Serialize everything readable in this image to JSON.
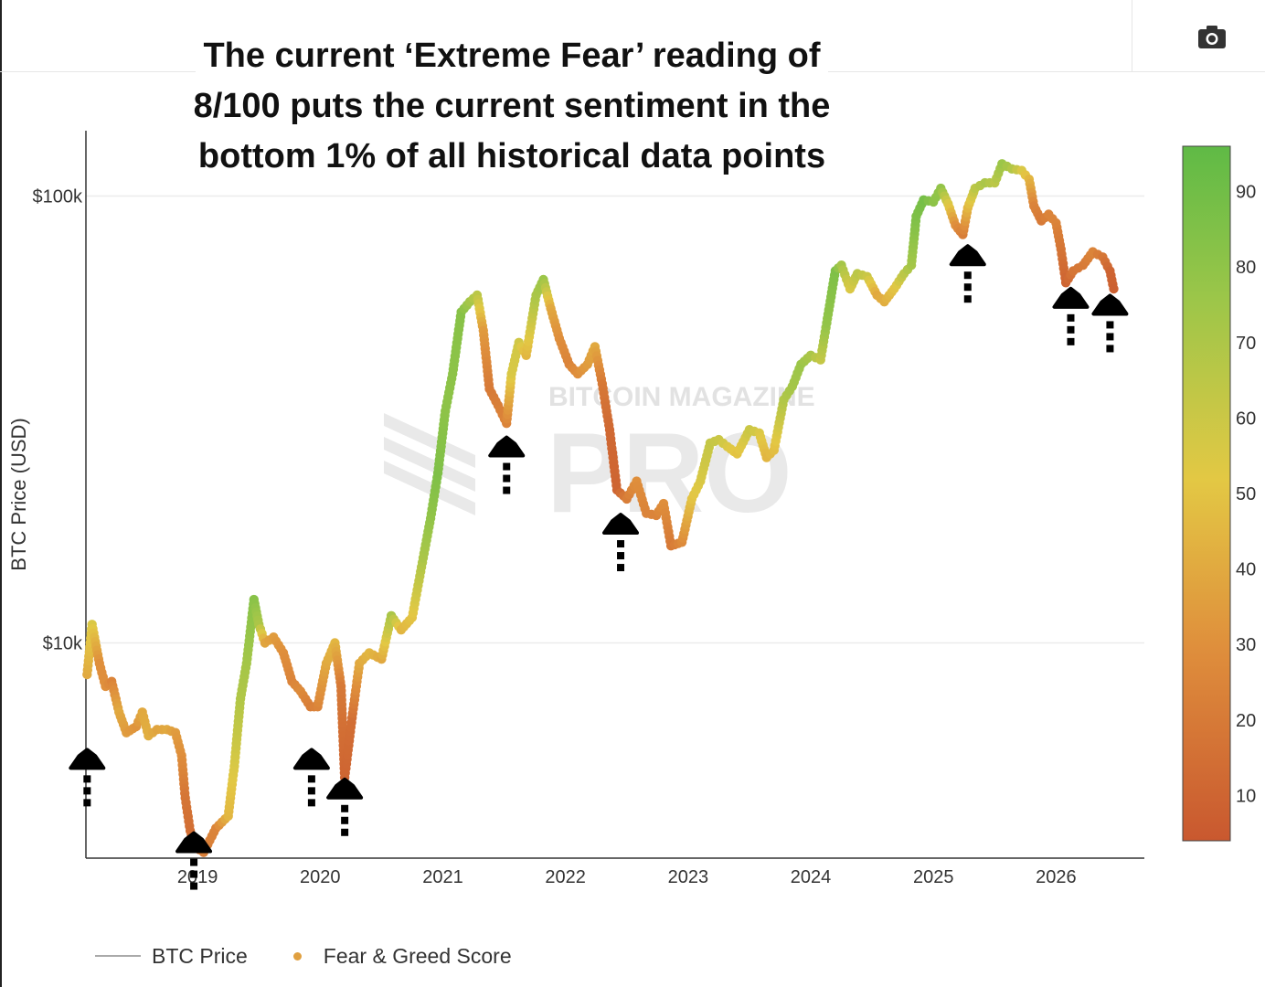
{
  "headline": {
    "line1": "The current ‘Extreme Fear’ reading of",
    "line2": "8/100 puts the current sentiment in the",
    "line3": "bottom 1% of all historical data points"
  },
  "toolbar": {
    "camera_icon": "camera-icon"
  },
  "watermark": {
    "small": "BITCOIN MAGAZINE",
    "big": "PRO"
  },
  "legend": {
    "price_label": "BTC Price",
    "score_label": "Fear & Greed Score"
  },
  "colors": {
    "greed": "#5fba46",
    "mid": "#e3c844",
    "fear": "#c9582f",
    "price_line": "#aaaaaa"
  },
  "chart_data": {
    "type": "scatter",
    "title": "",
    "xlabel": "",
    "ylabel": "BTC Price (USD)",
    "yscale": "log",
    "x_ticks": [
      "2019",
      "2020",
      "2021",
      "2022",
      "2023",
      "2024",
      "2025",
      "2026"
    ],
    "y_ticks": [
      {
        "value": 10000,
        "label": "$10k"
      },
      {
        "value": 100000,
        "label": "$100k"
      }
    ],
    "xlim": [
      2018.09,
      2026.72
    ],
    "ylim": [
      3300,
      140000
    ],
    "colorbar": {
      "range": [
        4,
        96
      ],
      "ticks": [
        10,
        20,
        30,
        40,
        50,
        60,
        70,
        80,
        90
      ]
    },
    "series": [
      {
        "name": "BTC Price",
        "points": [
          [
            2018.1,
            8500,
            40
          ],
          [
            2018.14,
            11000,
            55
          ],
          [
            2018.2,
            9000,
            30
          ],
          [
            2018.25,
            8000,
            30
          ],
          [
            2018.3,
            8200,
            25
          ],
          [
            2018.36,
            7000,
            40
          ],
          [
            2018.42,
            6300,
            35
          ],
          [
            2018.5,
            6500,
            32
          ],
          [
            2018.55,
            7000,
            40
          ],
          [
            2018.6,
            6200,
            42
          ],
          [
            2018.67,
            6400,
            38
          ],
          [
            2018.75,
            6400,
            40
          ],
          [
            2018.82,
            6300,
            35
          ],
          [
            2018.87,
            5600,
            30
          ],
          [
            2018.9,
            4500,
            18
          ],
          [
            2018.94,
            3800,
            15
          ],
          [
            2018.98,
            3500,
            12
          ],
          [
            2019.05,
            3400,
            22
          ],
          [
            2019.15,
            3850,
            25
          ],
          [
            2019.25,
            4100,
            45
          ],
          [
            2019.3,
            5300,
            55
          ],
          [
            2019.35,
            7500,
            68
          ],
          [
            2019.4,
            9000,
            72
          ],
          [
            2019.46,
            12500,
            82
          ],
          [
            2019.5,
            11000,
            70
          ],
          [
            2019.55,
            10000,
            38
          ],
          [
            2019.62,
            10300,
            35
          ],
          [
            2019.7,
            9500,
            30
          ],
          [
            2019.77,
            8200,
            25
          ],
          [
            2019.84,
            7800,
            28
          ],
          [
            2019.92,
            7200,
            22
          ],
          [
            2019.98,
            7200,
            25
          ],
          [
            2020.05,
            9000,
            40
          ],
          [
            2020.12,
            10000,
            45
          ],
          [
            2020.17,
            8000,
            20
          ],
          [
            2020.2,
            5000,
            10
          ],
          [
            2020.26,
            6800,
            15
          ],
          [
            2020.32,
            9000,
            40
          ],
          [
            2020.4,
            9500,
            45
          ],
          [
            2020.5,
            9200,
            40
          ],
          [
            2020.58,
            11500,
            70
          ],
          [
            2020.66,
            10700,
            45
          ],
          [
            2020.75,
            11400,
            50
          ],
          [
            2020.84,
            15500,
            70
          ],
          [
            2020.9,
            19000,
            78
          ],
          [
            2020.96,
            24000,
            85
          ],
          [
            2021.02,
            33000,
            80
          ],
          [
            2021.08,
            40000,
            80
          ],
          [
            2021.15,
            55000,
            82
          ],
          [
            2021.22,
            58000,
            72
          ],
          [
            2021.28,
            60000,
            65
          ],
          [
            2021.33,
            50000,
            35
          ],
          [
            2021.38,
            37000,
            20
          ],
          [
            2021.45,
            34000,
            22
          ],
          [
            2021.52,
            31000,
            25
          ],
          [
            2021.56,
            40000,
            55
          ],
          [
            2021.62,
            47000,
            58
          ],
          [
            2021.68,
            44000,
            45
          ],
          [
            2021.76,
            60000,
            70
          ],
          [
            2021.82,
            65000,
            75
          ],
          [
            2021.88,
            56000,
            40
          ],
          [
            2021.95,
            48000,
            30
          ],
          [
            2022.03,
            42000,
            25
          ],
          [
            2022.1,
            40000,
            30
          ],
          [
            2022.18,
            42000,
            35
          ],
          [
            2022.24,
            46000,
            40
          ],
          [
            2022.3,
            38000,
            20
          ],
          [
            2022.36,
            30000,
            12
          ],
          [
            2022.42,
            22000,
            10
          ],
          [
            2022.5,
            21000,
            22
          ],
          [
            2022.58,
            23000,
            30
          ],
          [
            2022.66,
            19500,
            25
          ],
          [
            2022.74,
            19300,
            25
          ],
          [
            2022.8,
            20500,
            30
          ],
          [
            2022.86,
            16500,
            20
          ],
          [
            2022.95,
            16800,
            28
          ],
          [
            2023.03,
            21000,
            50
          ],
          [
            2023.1,
            23000,
            55
          ],
          [
            2023.18,
            28000,
            62
          ],
          [
            2023.25,
            28500,
            60
          ],
          [
            2023.32,
            27500,
            55
          ],
          [
            2023.4,
            26500,
            50
          ],
          [
            2023.5,
            30000,
            60
          ],
          [
            2023.58,
            29500,
            55
          ],
          [
            2023.64,
            26000,
            45
          ],
          [
            2023.7,
            27000,
            48
          ],
          [
            2023.78,
            35000,
            68
          ],
          [
            2023.85,
            37500,
            72
          ],
          [
            2023.92,
            42000,
            75
          ],
          [
            2024.0,
            44000,
            70
          ],
          [
            2024.08,
            43000,
            62
          ],
          [
            2024.13,
            52000,
            78
          ],
          [
            2024.2,
            68000,
            85
          ],
          [
            2024.25,
            70000,
            72
          ],
          [
            2024.32,
            62000,
            55
          ],
          [
            2024.38,
            67000,
            65
          ],
          [
            2024.46,
            66000,
            60
          ],
          [
            2024.54,
            60000,
            40
          ],
          [
            2024.6,
            58000,
            42
          ],
          [
            2024.68,
            62000,
            50
          ],
          [
            2024.76,
            67000,
            65
          ],
          [
            2024.82,
            70000,
            72
          ],
          [
            2024.86,
            90000,
            85
          ],
          [
            2024.92,
            98000,
            88
          ],
          [
            2025.0,
            97000,
            80
          ],
          [
            2025.06,
            104000,
            78
          ],
          [
            2025.12,
            96000,
            55
          ],
          [
            2025.18,
            86000,
            30
          ],
          [
            2025.24,
            82000,
            22
          ],
          [
            2025.28,
            94000,
            45
          ],
          [
            2025.34,
            104000,
            65
          ],
          [
            2025.42,
            107000,
            70
          ],
          [
            2025.5,
            107000,
            65
          ],
          [
            2025.56,
            118000,
            75
          ],
          [
            2025.64,
            115000,
            68
          ],
          [
            2025.72,
            114000,
            55
          ],
          [
            2025.78,
            109000,
            45
          ],
          [
            2025.82,
            95000,
            25
          ],
          [
            2025.88,
            88000,
            20
          ],
          [
            2025.94,
            91000,
            25
          ],
          [
            2026.0,
            87000,
            25
          ],
          [
            2026.04,
            76000,
            18
          ],
          [
            2026.08,
            64000,
            10
          ],
          [
            2026.14,
            68000,
            18
          ],
          [
            2026.22,
            70000,
            20
          ],
          [
            2026.3,
            75000,
            25
          ],
          [
            2026.38,
            73000,
            18
          ],
          [
            2026.44,
            68000,
            10
          ],
          [
            2026.47,
            62000,
            8
          ]
        ]
      }
    ],
    "annotations": [
      {
        "type": "arrow-up",
        "x": 2018.1,
        "y": 5300
      },
      {
        "type": "arrow-up",
        "x": 2018.97,
        "y": 3450
      },
      {
        "type": "arrow-up",
        "x": 2019.93,
        "y": 5300
      },
      {
        "type": "arrow-up",
        "x": 2020.2,
        "y": 4550
      },
      {
        "type": "arrow-up",
        "x": 2021.52,
        "y": 26500
      },
      {
        "type": "arrow-up",
        "x": 2022.45,
        "y": 17800
      },
      {
        "type": "arrow-up",
        "x": 2025.28,
        "y": 71000
      },
      {
        "type": "arrow-up",
        "x": 2026.12,
        "y": 57000
      },
      {
        "type": "arrow-up",
        "x": 2026.44,
        "y": 55000
      }
    ]
  }
}
